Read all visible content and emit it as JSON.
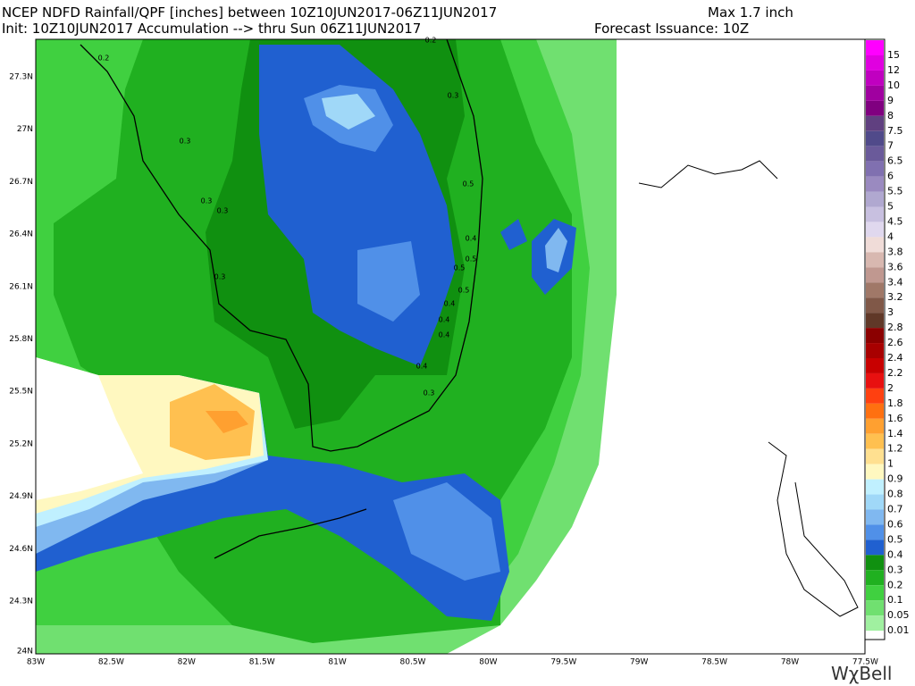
{
  "header": {
    "title": "NCEP NDFD Rainfall/QPF [inches] between 10Z10JUN2017-06Z11JUN2017",
    "max": "Max 1.7 inch",
    "init": "Init: 10Z10JUN2017 Accumulation --> thru Sun 06Z11JUN2017",
    "issuance": "Forecast Issuance: 10Z"
  },
  "map": {
    "lat_labels": [
      "27.3N",
      "27N",
      "26.7N",
      "26.4N",
      "26.1N",
      "25.8N",
      "25.5N",
      "25.2N",
      "24.9N",
      "24.6N",
      "24.3N",
      "24N"
    ],
    "lon_labels": [
      "83W",
      "82.5W",
      "82W",
      "81.5W",
      "81W",
      "80.5W",
      "80W",
      "79.5W",
      "79W",
      "78.5W",
      "78W",
      "77.5W"
    ],
    "contour_labels": [
      "0.2",
      "0.2",
      "0.3",
      "0.3",
      "0.3",
      "0.3",
      "0.3",
      "0.5",
      "0.4",
      "0.5",
      "0.5",
      "0.5",
      "0.4",
      "0.4",
      "0.4",
      "0.4",
      "0.3"
    ]
  },
  "colorbar": {
    "labels": [
      "15",
      "12",
      "10",
      "9",
      "8",
      "7.5",
      "7",
      "6.5",
      "6",
      "5.5",
      "5",
      "4.5",
      "4",
      "3.8",
      "3.6",
      "3.4",
      "3.2",
      "3",
      "2.8",
      "2.6",
      "2.4",
      "2.2",
      "2",
      "1.8",
      "1.6",
      "1.4",
      "1.2",
      "1",
      "0.9",
      "0.8",
      "0.7",
      "0.6",
      "0.5",
      "0.4",
      "0.3",
      "0.2",
      "0.1",
      "0.05",
      "0.01"
    ],
    "colors": [
      "#ff00ff",
      "#e000e0",
      "#c000c0",
      "#a000a0",
      "#800080",
      "#604080",
      "#504a8a",
      "#6a5a9a",
      "#8070b0",
      "#9a8ac0",
      "#b0a8d0",
      "#c8c0e0",
      "#e0d8ee",
      "#f0dcd8",
      "#d8b8b0",
      "#c09890",
      "#a07868",
      "#805848",
      "#603828",
      "#8b0000",
      "#a80000",
      "#c80000",
      "#e81010",
      "#ff4010",
      "#ff7010",
      "#ffa030",
      "#ffc050",
      "#ffe090",
      "#fff8c0",
      "#c0f0ff",
      "#a0d8f8",
      "#80b8f0",
      "#5090e8",
      "#2060d0",
      "#109010",
      "#20b020",
      "#40d040",
      "#70e070",
      "#a0f0a0"
    ]
  },
  "logo": "WχBell"
}
